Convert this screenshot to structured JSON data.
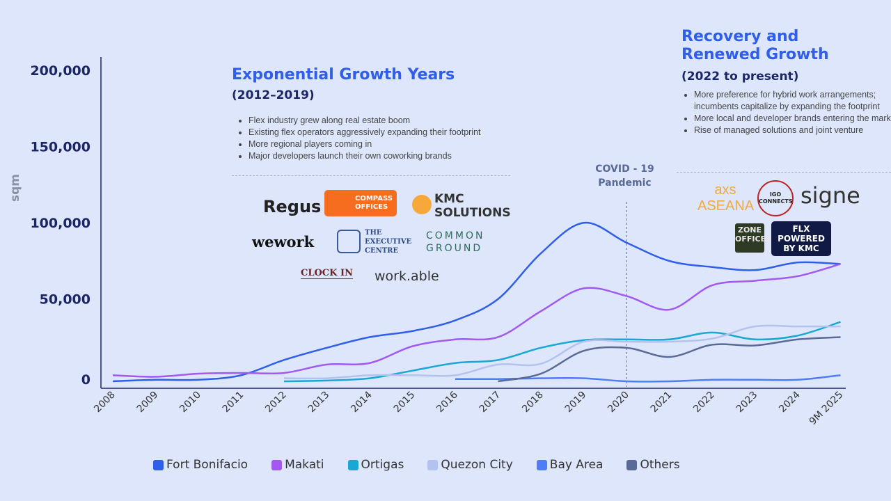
{
  "chart_data": {
    "type": "line",
    "ylabel": "sqm",
    "ylim": [
      0,
      200000
    ],
    "yticks": [
      "0",
      "50,000",
      "100,000",
      "150,000",
      "200,000"
    ],
    "x": [
      "2008",
      "2009",
      "2010",
      "2011",
      "2012",
      "2013",
      "2014",
      "2015",
      "2016",
      "2017",
      "2018",
      "2019",
      "2020",
      "2021",
      "2022",
      "2023",
      "2024",
      "9M 2025"
    ],
    "series": [
      {
        "name": "Fort Bonifacio",
        "color": "#2f5fe8",
        "values": [
          0,
          1000,
          1000,
          4000,
          14000,
          22000,
          29000,
          33000,
          40000,
          54000,
          84000,
          104000,
          91000,
          79000,
          75000,
          73000,
          78000,
          77000
        ]
      },
      {
        "name": "Makati",
        "color": "#a259f0",
        "values": [
          4000,
          3000,
          5000,
          5500,
          5500,
          11000,
          12000,
          23000,
          27500,
          29000,
          46000,
          61000,
          56000,
          47000,
          63000,
          66000,
          69000,
          77000
        ]
      },
      {
        "name": "Ortigas",
        "color": "#1aa7d4",
        "values": [
          null,
          null,
          null,
          null,
          0,
          500,
          2000,
          7000,
          12000,
          14000,
          22000,
          27000,
          27500,
          27500,
          32000,
          27500,
          30000,
          39000
        ]
      },
      {
        "name": "Quezon City",
        "color": "#b3c2ee",
        "values": [
          null,
          null,
          null,
          null,
          2000,
          2000,
          4000,
          4000,
          4000,
          11000,
          11500,
          26000,
          26000,
          26000,
          28000,
          36000,
          36000,
          36000
        ]
      },
      {
        "name": "Bay Area",
        "color": "#4f7cf7",
        "values": [
          null,
          null,
          null,
          null,
          null,
          null,
          null,
          null,
          1500,
          1500,
          2000,
          2000,
          0,
          0,
          1000,
          1000,
          1000,
          4000
        ]
      },
      {
        "name": "Others",
        "color": "#5a6a96",
        "values": [
          null,
          null,
          null,
          null,
          null,
          null,
          null,
          null,
          null,
          0,
          5000,
          20000,
          22000,
          16000,
          24000,
          23500,
          27500,
          29000
        ]
      }
    ],
    "annotations": {
      "covid": "COVID - 19 Pandemic",
      "covid_year": "2020"
    },
    "legend_position": "bottom",
    "grid": false
  },
  "growth": {
    "title": "Exponential Growth Years",
    "period": "(2012–2019)",
    "bullets": [
      "Flex industry grew along real estate boom",
      "Existing flex operators aggressively expanding their footprint",
      "More regional players coming in",
      "Major developers launch their own coworking brands"
    ],
    "logos": [
      "Regus",
      "COMPASS OFFICES",
      "KMC SOLUTIONS",
      "wework",
      "THE EXECUTIVE CENTRE",
      "COMMON GROUND",
      "CLOCK IN",
      "work.able"
    ]
  },
  "recovery": {
    "title1": "Recovery and",
    "title2": "Renewed Growth",
    "period": "(2022 to present)",
    "bullets": [
      "More preference for hybrid work arrangements; incumbents capitalize by expanding the footprint",
      "More local and developer brands entering the market",
      "Rise of managed solutions and joint venture"
    ],
    "logos": [
      "axs ASEANA",
      "IGO CONNECTS",
      "signe",
      "ZONE OFFICES",
      "FLX POWERED BY KMC"
    ]
  },
  "covid_label": [
    "COVID - 19",
    "Pandemic"
  ]
}
